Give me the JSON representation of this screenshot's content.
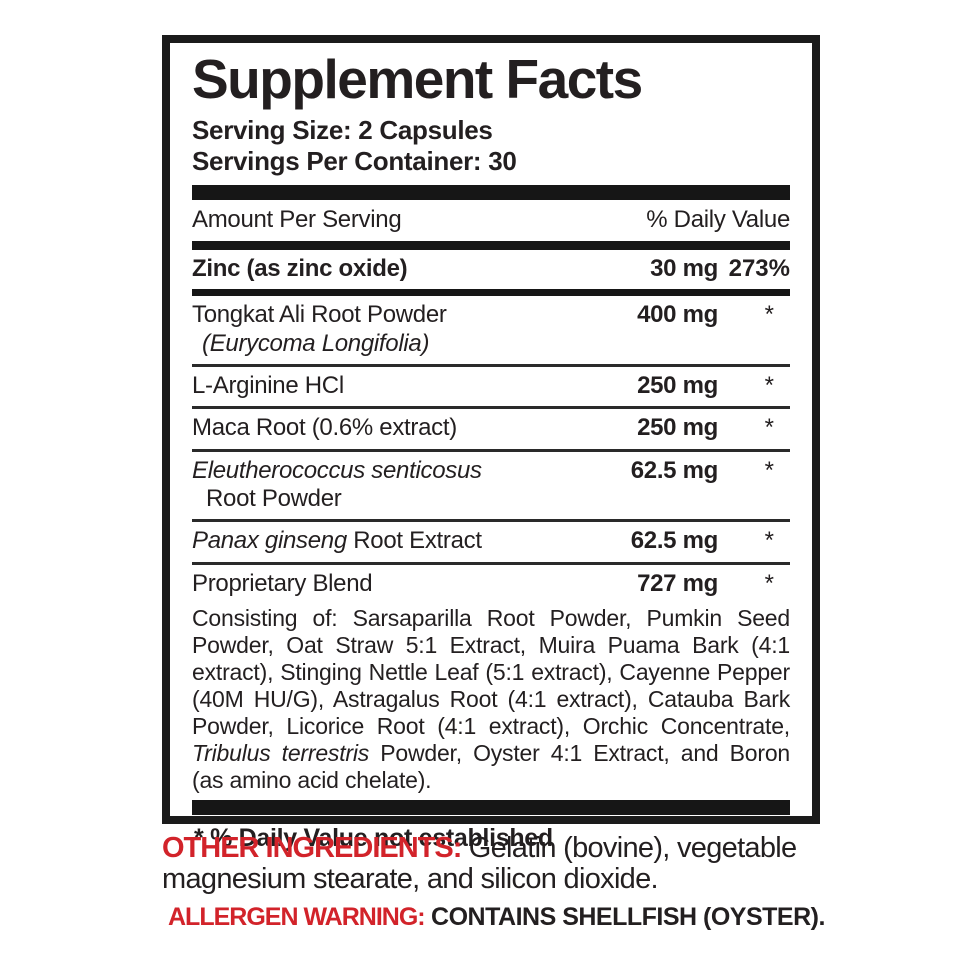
{
  "colors": {
    "ink": "#231f20",
    "accent_red": "#d2232a",
    "bar_black": "#161616"
  },
  "panel": {
    "title": "Supplement Facts",
    "serving_size": "Serving Size: 2 Capsules",
    "servings_per_container": "Servings Per Container: 30",
    "col_amount": "Amount Per Serving",
    "col_dv": "% Daily Value",
    "rows": [
      {
        "name": "Zinc (as zinc oxide)",
        "amount": "30 mg",
        "dv": "273%"
      },
      {
        "name_line1": "Tongkat Ali Root Powder",
        "name_line2": "(Eurycoma Longifolia)",
        "amount": "400 mg",
        "dv": "*"
      },
      {
        "name": "L-Arginine HCl",
        "amount": "250 mg",
        "dv": "*"
      },
      {
        "name": "Maca Root (0.6% extract)",
        "amount": "250 mg",
        "dv": "*"
      },
      {
        "name_italic": "Eleutherococcus senticosus",
        "name_line2": "Root Powder",
        "amount": "62.5 mg",
        "dv": "*"
      },
      {
        "name_italic": "Panax ginseng",
        "name_rest": " Root Extract",
        "amount": "62.5 mg",
        "dv": "*"
      },
      {
        "name": "Proprietary Blend",
        "amount": "727 mg",
        "dv": "*"
      }
    ],
    "blend_desc": {
      "part1": "Consisting of: Sarsaparilla Root Powder, Pumkin Seed Powder, Oat Straw 5:1 Extract, Muira Puama Bark (4:1 extract), Stinging Nettle Leaf (5:1 extract), Cayenne Pepper (40M HU/G), Astragalus Root (4:1 extract), Catauba Bark Powder, Licorice Root (4:1 extract), Orchic Concentrate, ",
      "italic": "Tribulus terrestris",
      "part2": " Powder, Oyster 4:1 Extract, and Boron (as amino acid chelate)."
    },
    "footnote": "* % Daily Value not established"
  },
  "other_ingredients": {
    "label": "OTHER INGREDIENTS:",
    "text_line1": " Gelatin (bovine), vegetable",
    "text_line2": "magnesium stearate, and silicon dioxide."
  },
  "allergen": {
    "label": "ALLERGEN WARNING:",
    "text": " CONTAINS SHELLFISH (OYSTER)."
  }
}
